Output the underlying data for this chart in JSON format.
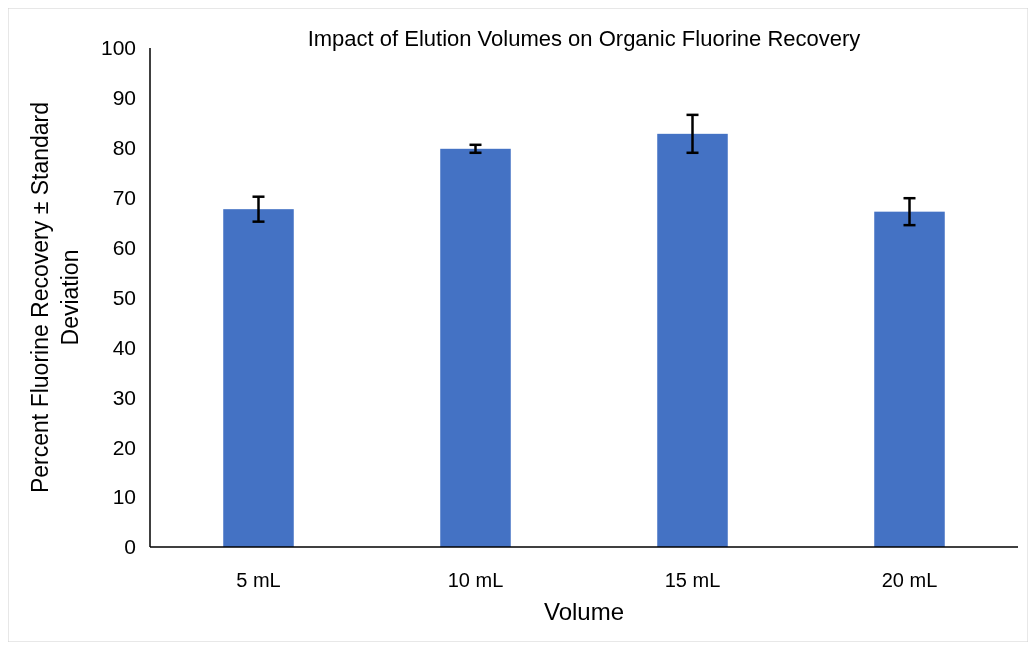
{
  "chart_data": {
    "type": "bar",
    "title": "Impact of Elution Volumes on Organic Fluorine Recovery",
    "xlabel": "Volume",
    "ylabel": "Percent Fluorine Recovery ± Standard Deviation",
    "categories": [
      "5 mL",
      "10 mL",
      "15 mL",
      "20 mL"
    ],
    "values": [
      67.7,
      79.8,
      82.8,
      67.2
    ],
    "errors": [
      2.5,
      0.8,
      3.8,
      2.7
    ],
    "color": "#4472c4",
    "ylim": [
      0,
      100
    ],
    "yticks": [
      0,
      10,
      20,
      30,
      40,
      50,
      60,
      70,
      80,
      90,
      100
    ]
  }
}
